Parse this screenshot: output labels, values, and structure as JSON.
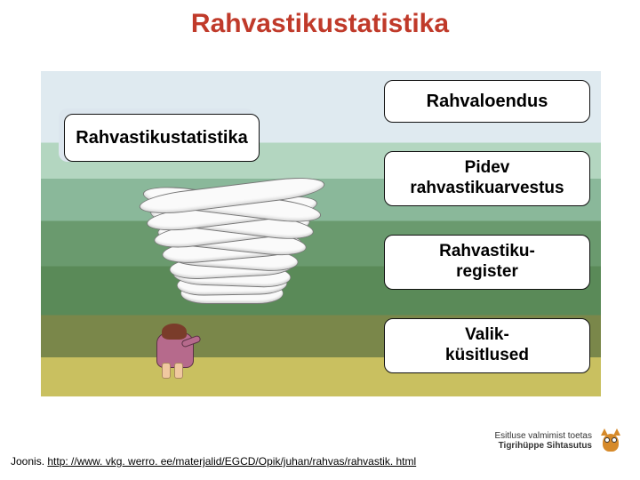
{
  "title": "Rahvastikustatistika",
  "title_color": "#c03a2a",
  "left_box": {
    "label": "Rahvastikustatistika"
  },
  "right_boxes": [
    {
      "label": "Rahvaloendus",
      "lines": 1
    },
    {
      "label": "Pidev\nrahvastikuarvestus",
      "lines": 2
    },
    {
      "label": "Rahvastiku-\nregister",
      "lines": 2
    },
    {
      "label": "Valik-\nküsitlused",
      "lines": 2
    }
  ],
  "bg_bands": [
    "#dfeaf0",
    "#b3d6c0",
    "#8ab89a",
    "#6a9a6e",
    "#5a8a58",
    "#7a874a",
    "#c9c060"
  ],
  "pile": {
    "sheet_count": 12,
    "sheet_color": "#fafafa",
    "sheet_border": "#777777",
    "spacing": 10,
    "base_rotation": 0,
    "rotation_jitter": 7
  },
  "person": {
    "body_color": "#b66a8c",
    "hair_color": "#7a3c2a",
    "skin_color": "#f0c8a0"
  },
  "footer": {
    "prefix": "Joonis. ",
    "link_text": "http: //www. vkg. werro. ee/materjalid/EGCD/Opik/juhan/rahvas/rahvastik. html"
  },
  "sponsor": {
    "line1": "Esitluse valmimist toetas",
    "line2": "Tigrihüppe Sihtasutus",
    "owl_color": "#d68a2a"
  }
}
